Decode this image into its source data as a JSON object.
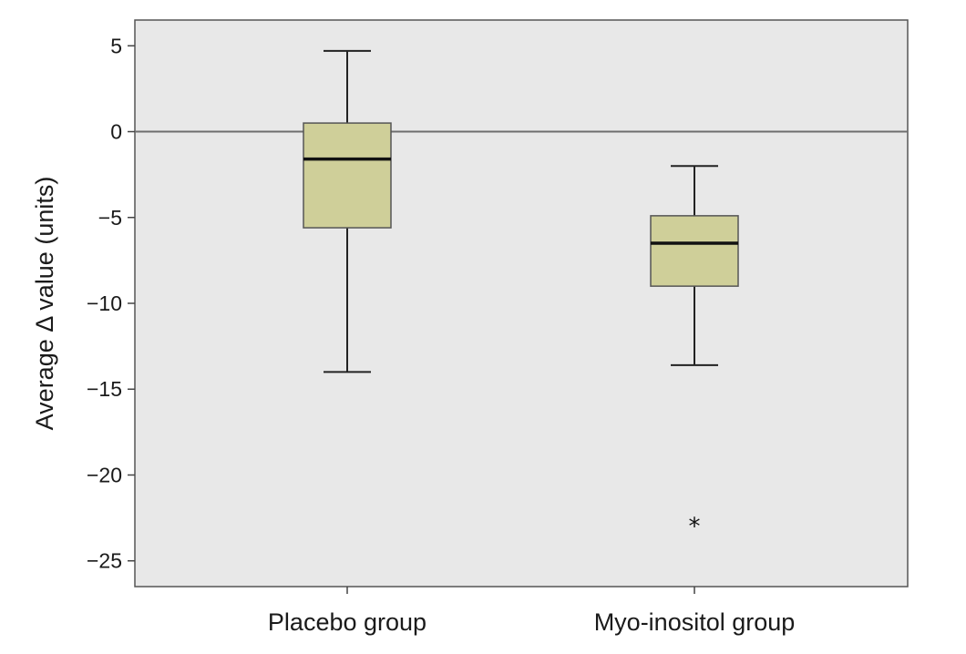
{
  "chart_data": {
    "type": "boxplot",
    "title": "",
    "xlabel": "",
    "ylabel": "Average Δ value (units)",
    "ylim": [
      -26.5,
      6.5
    ],
    "yticks": [
      5,
      0,
      -5,
      -10,
      -15,
      -20,
      -25
    ],
    "ytick_labels": [
      "5",
      "0",
      "-5",
      "-10",
      "-15",
      "-20",
      "-25"
    ],
    "reference_line": 0,
    "grid": false,
    "legend": "none",
    "background_color": "#e8e8e8",
    "box_color": "#cfcf99",
    "categories": [
      "Placebo group",
      "Myo-inositol group"
    ],
    "series": [
      {
        "category": "Placebo group",
        "whisker_low": -14,
        "q1": -5.6,
        "median": -1.6,
        "q3": 0.5,
        "whisker_high": 4.7,
        "outliers": []
      },
      {
        "category": "Myo-inositol group",
        "whisker_low": -13.6,
        "q1": -9.0,
        "median": -6.5,
        "q3": -4.9,
        "whisker_high": -2.0,
        "outliers": [
          -22.8
        ]
      }
    ],
    "outlier_marker": "*"
  }
}
